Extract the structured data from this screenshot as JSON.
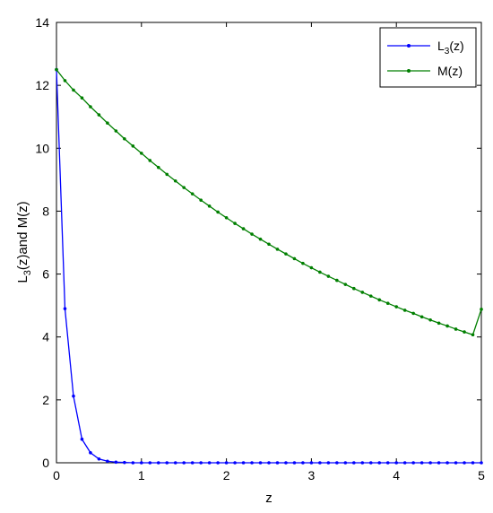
{
  "chart_data": {
    "type": "line",
    "xlabel": "z",
    "ylabel": {
      "main": "L",
      "sub": "3",
      "rest": "(z)and M(z)"
    },
    "xlim": [
      0,
      5
    ],
    "ylim": [
      0,
      14
    ],
    "xticks": [
      0,
      1,
      2,
      3,
      4,
      5
    ],
    "yticks": [
      0,
      2,
      4,
      6,
      8,
      10,
      12,
      14
    ],
    "grid": false,
    "legend_position": "top-right",
    "x": [
      0,
      0.1,
      0.2,
      0.3,
      0.4,
      0.5,
      0.6,
      0.7,
      0.8,
      0.9,
      1.0,
      1.1,
      1.2,
      1.3,
      1.4,
      1.5,
      1.6,
      1.7,
      1.8,
      1.9,
      2.0,
      2.1,
      2.2,
      2.3,
      2.4,
      2.5,
      2.6,
      2.7,
      2.8,
      2.9,
      3.0,
      3.1,
      3.2,
      3.3,
      3.4,
      3.5,
      3.6,
      3.7,
      3.8,
      3.9,
      4.0,
      4.1,
      4.2,
      4.3,
      4.4,
      4.5,
      4.6,
      4.7,
      4.8,
      4.9,
      5.0
    ],
    "series": [
      {
        "name": {
          "main": "L",
          "sub": "3",
          "rest": "(z)"
        },
        "color": "#0000ff",
        "values": [
          12.5,
          4.9,
          2.12,
          0.75,
          0.32,
          0.12,
          0.05,
          0.02,
          0.01,
          0,
          0,
          0,
          0,
          0,
          0,
          0,
          0,
          0,
          0,
          0,
          0,
          0,
          0,
          0,
          0,
          0,
          0,
          0,
          0,
          0,
          0,
          0,
          0,
          0,
          0,
          0,
          0,
          0,
          0,
          0,
          0,
          0,
          0,
          0,
          0,
          0,
          0,
          0,
          0,
          0,
          0
        ]
      },
      {
        "name": {
          "main": "M(z)",
          "sub": "",
          "rest": ""
        },
        "color": "#007f00",
        "values": [
          12.5,
          12.15,
          11.85,
          11.6,
          11.32,
          11.06,
          10.8,
          10.55,
          10.3,
          10.07,
          9.84,
          9.61,
          9.39,
          9.17,
          8.96,
          8.75,
          8.55,
          8.35,
          8.16,
          7.97,
          7.79,
          7.61,
          7.44,
          7.27,
          7.11,
          6.95,
          6.79,
          6.64,
          6.49,
          6.34,
          6.2,
          6.06,
          5.93,
          5.8,
          5.67,
          5.54,
          5.42,
          5.3,
          5.18,
          5.07,
          4.96,
          4.85,
          4.75,
          4.64,
          4.54,
          4.44,
          4.35,
          4.25,
          4.16,
          4.07,
          4.88
        ]
      }
    ]
  }
}
